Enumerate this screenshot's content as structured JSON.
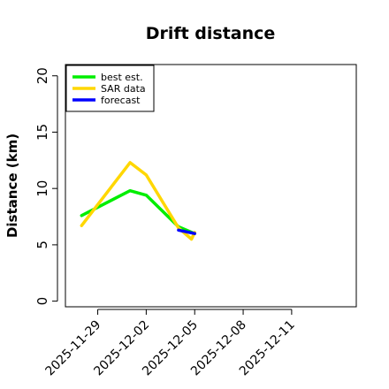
{
  "chart_data": {
    "type": "line",
    "title": "Drift distance",
    "xlabel": "",
    "ylabel": "Distance (km)",
    "x_ticks": [
      "2025-11-29",
      "2025-12-02",
      "2025-12-05",
      "2025-12-08",
      "2025-12-11"
    ],
    "y_ticks": [
      0,
      5,
      10,
      15,
      20
    ],
    "ylim": [
      -0.5,
      21
    ],
    "xlim": [
      "2025-11-27",
      "2025-12-15"
    ],
    "grid": false,
    "legend_position": "top-left",
    "series": [
      {
        "name": "best est.",
        "color": "#00ee00",
        "x": [
          "2025-11-28",
          "2025-12-01",
          "2025-12-02",
          "2025-12-04",
          "2025-12-05"
        ],
        "y": [
          7.6,
          9.8,
          9.4,
          6.6,
          6.0
        ]
      },
      {
        "name": "SAR data",
        "color": "#ffd700",
        "x": [
          "2025-11-28",
          "2025-12-01",
          "2025-12-02",
          "2025-12-04",
          "2025-12-04.8",
          "2025-12-05"
        ],
        "y": [
          6.7,
          12.3,
          11.2,
          6.5,
          5.5,
          6.1
        ]
      },
      {
        "name": "forecast",
        "color": "#0000ff",
        "x": [
          "2025-12-04",
          "2025-12-05"
        ],
        "y": [
          6.3,
          6.0
        ]
      }
    ]
  }
}
